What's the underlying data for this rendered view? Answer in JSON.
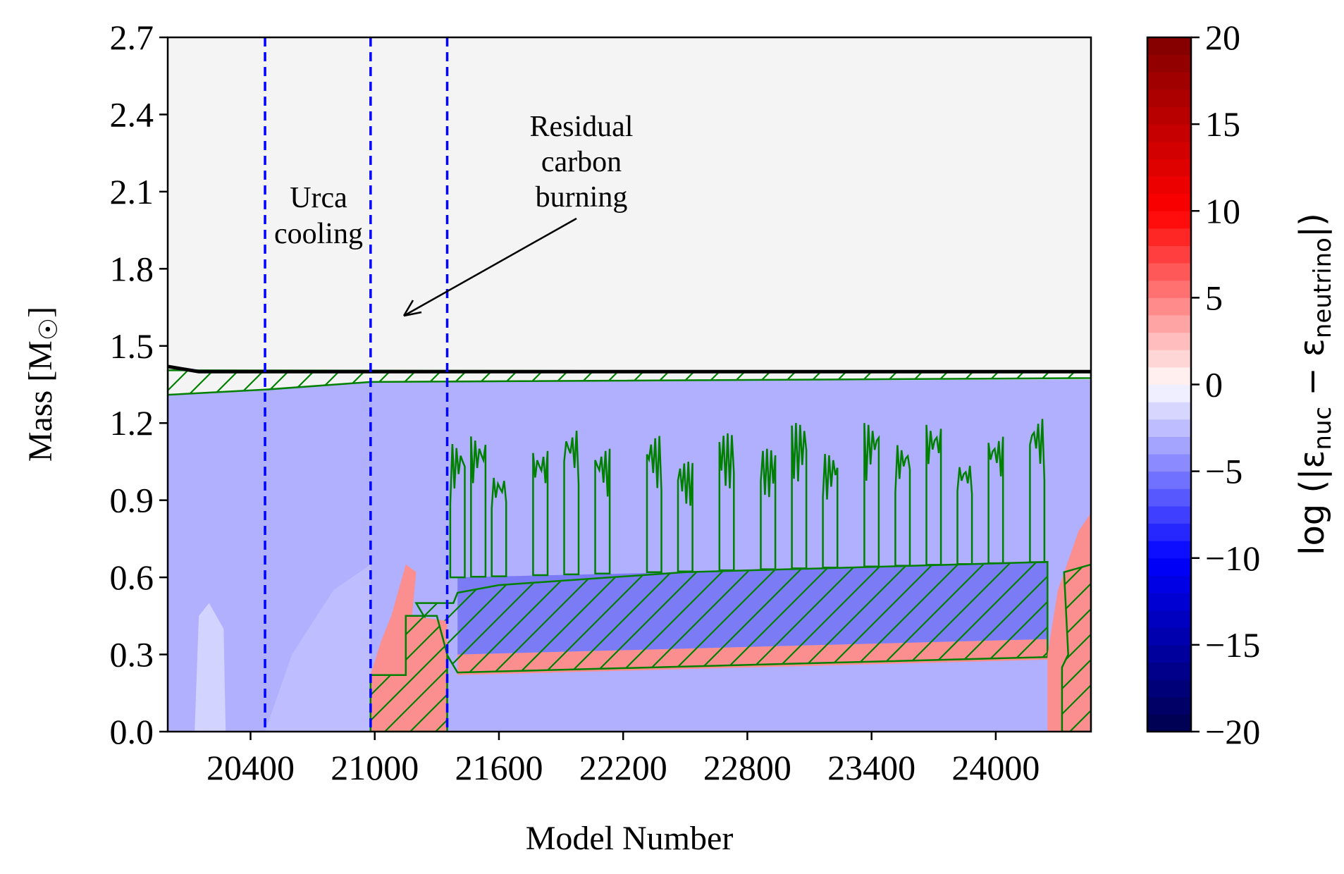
{
  "chart_data": {
    "type": "heatmap",
    "title": "",
    "xlabel": "Model Number",
    "ylabel": "Mass [M",
    "ylabel_sun": "☉",
    "ylabel_close": "]",
    "xlim": [
      20000,
      24460
    ],
    "ylim": [
      0.0,
      2.7
    ],
    "x_ticks": [
      20400,
      21000,
      21600,
      22200,
      22800,
      23400,
      24000
    ],
    "y_ticks": [
      "0.0",
      "0.3",
      "0.6",
      "0.9",
      "1.2",
      "1.5",
      "1.8",
      "2.1",
      "2.4",
      "2.7"
    ],
    "colorbar": {
      "label_prefix": "log (|ε",
      "label_sub1": "nuc",
      "label_mid": " − ε",
      "label_sub2": "neutrino",
      "label_suffix": "|)",
      "range": [
        -20,
        20
      ],
      "ticks": [
        "20",
        "15",
        "10",
        "5",
        "0",
        "−5",
        "−10",
        "−15",
        "−20"
      ],
      "colormap": "seismic"
    },
    "vlines": [
      {
        "x": 20470,
        "color": "#0000ff",
        "style": "dashed"
      },
      {
        "x": 20980,
        "color": "#0000ff",
        "style": "dashed"
      },
      {
        "x": 21350,
        "color": "#0000ff",
        "style": "dashed"
      }
    ],
    "star_mass_line": {
      "x": [
        20000,
        20150,
        24460
      ],
      "y": [
        1.42,
        1.4,
        1.4
      ],
      "color": "#000000"
    },
    "annotations": [
      {
        "lines": [
          "Urca",
          "cooling"
        ],
        "x": 20730,
        "y": 2.0
      },
      {
        "lines": [
          "Residual",
          "carbon",
          "burning"
        ],
        "x": 21790,
        "y": 2.15,
        "arrow_to": [
          21120,
          1.6
        ]
      }
    ],
    "regions": {
      "envelope_color": "#f4f4f4",
      "core_color": "#b0b0ff",
      "burning_color": "#fb8f8f",
      "convective_color": "#7b7bf5",
      "convective_hatch_color": "#008000"
    },
    "convective_shell": {
      "x_start": 21400,
      "x_end": 24250,
      "bottom": [
        0.23,
        0.29
      ],
      "top": [
        0.6,
        0.66
      ]
    },
    "plumes": [
      {
        "x": 21400,
        "top": 1.12
      },
      {
        "x": 21500,
        "top": 1.15
      },
      {
        "x": 21600,
        "top": 1.0
      },
      {
        "x": 21800,
        "top": 1.1
      },
      {
        "x": 21950,
        "top": 1.18
      },
      {
        "x": 22100,
        "top": 1.1
      },
      {
        "x": 22350,
        "top": 1.15
      },
      {
        "x": 22500,
        "top": 1.05
      },
      {
        "x": 22700,
        "top": 1.16
      },
      {
        "x": 22900,
        "top": 1.1
      },
      {
        "x": 23050,
        "top": 1.2
      },
      {
        "x": 23200,
        "top": 1.08
      },
      {
        "x": 23400,
        "top": 1.2
      },
      {
        "x": 23550,
        "top": 1.12
      },
      {
        "x": 23700,
        "top": 1.2
      },
      {
        "x": 23850,
        "top": 1.05
      },
      {
        "x": 24000,
        "top": 1.15
      },
      {
        "x": 24200,
        "top": 1.22
      }
    ]
  }
}
